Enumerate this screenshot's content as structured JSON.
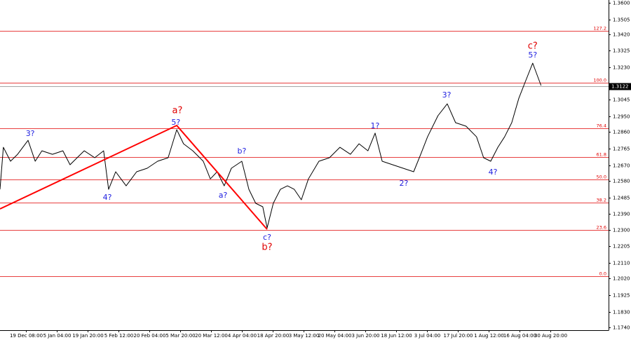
{
  "chart_data": {
    "type": "line",
    "xlim": [
      1.6,
      198.9
    ],
    "ylim": [
      1.1724,
      1.3616
    ],
    "xticks": [
      {
        "value": 10,
        "label": "19 Dec 08:00"
      },
      {
        "value": 20,
        "label": "5 Jan 04:00"
      },
      {
        "value": 30,
        "label": "19 Jan 20:00"
      },
      {
        "value": 40,
        "label": "5 Feb 12:00"
      },
      {
        "value": 50,
        "label": "20 Feb 04:00"
      },
      {
        "value": 60,
        "label": "5 Mar 20:00"
      },
      {
        "value": 70,
        "label": "20 Mar 12:00"
      },
      {
        "value": 80,
        "label": "4 Apr 04:00"
      },
      {
        "value": 90,
        "label": "18 Apr 20:00"
      },
      {
        "value": 100,
        "label": "3 May 12:00"
      },
      {
        "value": 110,
        "label": "20 May 04:00"
      },
      {
        "value": 120,
        "label": "3 Jun 20:00"
      },
      {
        "value": 130,
        "label": "18 Jun 12:00"
      },
      {
        "value": 140,
        "label": "3 Jul 04:00"
      },
      {
        "value": 150,
        "label": "17 Jul 20:00"
      },
      {
        "value": 160,
        "label": "1 Aug 12:00"
      },
      {
        "value": 170,
        "label": "16 Aug 04:00"
      },
      {
        "value": 180,
        "label": "30 Aug 20:00"
      }
    ],
    "yticks": [
      {
        "value": 1.36,
        "label": "1.3600"
      },
      {
        "value": 1.3505,
        "label": "1.3505"
      },
      {
        "value": 1.342,
        "label": "1.3420"
      },
      {
        "value": 1.3325,
        "label": "1.3325"
      },
      {
        "value": 1.323,
        "label": "1.3230"
      },
      {
        "value": 1.3045,
        "label": "1.3045"
      },
      {
        "value": 1.295,
        "label": "1.2950"
      },
      {
        "value": 1.286,
        "label": "1.2860"
      },
      {
        "value": 1.2765,
        "label": "1.2765"
      },
      {
        "value": 1.267,
        "label": "1.2670"
      },
      {
        "value": 1.258,
        "label": "1.2580"
      },
      {
        "value": 1.2485,
        "label": "1.2485"
      },
      {
        "value": 1.239,
        "label": "1.2390"
      },
      {
        "value": 1.23,
        "label": "1.2300"
      },
      {
        "value": 1.2205,
        "label": "1.2205"
      },
      {
        "value": 1.211,
        "label": "1.2110"
      },
      {
        "value": 1.202,
        "label": "1.2020"
      },
      {
        "value": 1.1925,
        "label": "1.1925"
      },
      {
        "value": 1.183,
        "label": "1.1830"
      },
      {
        "value": 1.174,
        "label": "1.1740"
      }
    ],
    "series": [
      {
        "color": "#000000",
        "x": [
          1.6,
          2.7,
          5.0,
          7.3,
          10.7,
          13.0,
          15.2,
          18.6,
          22.0,
          24.3,
          26.6,
          28.9,
          32.3,
          35.2,
          36.8,
          39.1,
          42.5,
          45.9,
          49.3,
          52.7,
          56.1,
          58.9,
          61.1,
          64.1,
          67.5,
          69.8,
          72.0,
          74.3,
          76.6,
          80.0,
          82.3,
          84.5,
          86.8,
          88.2,
          90.2,
          92.5,
          94.8,
          97.0,
          99.3,
          101.6,
          105.0,
          108.4,
          111.8,
          115.2,
          118.0,
          120.9,
          123.2,
          125.5,
          128.9,
          132.3,
          135.7,
          138.0,
          140.2,
          143.6,
          146.6,
          149.3,
          152.7,
          156.1,
          158.4,
          160.7,
          163.0,
          165.2,
          167.5,
          169.8,
          171.6,
          174.3,
          177.0
        ],
        "values": [
          1.2531,
          1.2772,
          1.2692,
          1.2732,
          1.2812,
          1.2692,
          1.2752,
          1.2732,
          1.2752,
          1.2672,
          1.2712,
          1.2752,
          1.2712,
          1.2752,
          1.2531,
          1.2632,
          1.2551,
          1.2632,
          1.2652,
          1.2692,
          1.2712,
          1.2873,
          1.2792,
          1.2752,
          1.2692,
          1.2591,
          1.2632,
          1.2551,
          1.2652,
          1.2692,
          1.2531,
          1.2451,
          1.2431,
          1.231,
          1.2451,
          1.2531,
          1.2551,
          1.2531,
          1.2471,
          1.2591,
          1.2692,
          1.2712,
          1.2772,
          1.2732,
          1.2792,
          1.2752,
          1.2853,
          1.2692,
          1.2672,
          1.2652,
          1.2632,
          1.2732,
          1.2832,
          1.2953,
          1.3021,
          1.2913,
          1.2893,
          1.2832,
          1.2712,
          1.2692,
          1.2772,
          1.2832,
          1.2913,
          1.3053,
          1.3134,
          1.3254,
          1.3126
        ]
      },
      {
        "color": "#ff0000",
        "x": [
          1.6,
          58.9,
          88.2
        ],
        "values": [
          1.2419,
          1.2897,
          1.2302
        ]
      }
    ],
    "fib_levels": [
      {
        "value": 1.3439,
        "label": "127.2"
      },
      {
        "value": 1.3142,
        "label": "100.0"
      },
      {
        "value": 1.2881,
        "label": "76.4"
      },
      {
        "value": 1.2716,
        "label": "61.8"
      },
      {
        "value": 1.2588,
        "label": "50.0"
      },
      {
        "value": 1.2455,
        "label": "38.2"
      },
      {
        "value": 1.2298,
        "label": "23.6"
      },
      {
        "value": 1.2033,
        "label": "0.0"
      }
    ],
    "fib_color": "#e00000",
    "last_price": {
      "value": 1.3122,
      "label": "1.3122"
    },
    "annotations": [
      {
        "text": "3?",
        "x": 11.4,
        "y": 1.2849,
        "color": "#2020e0"
      },
      {
        "text": "4?",
        "x": 36.4,
        "y": 1.2483,
        "color": "#2020e0"
      },
      {
        "text": "a?",
        "x": 59.1,
        "y": 1.2981,
        "color": "#e00000"
      },
      {
        "text": "5?",
        "x": 58.6,
        "y": 1.2913,
        "color": "#2020e0"
      },
      {
        "text": "b?",
        "x": 80.0,
        "y": 1.2748,
        "color": "#2020e0"
      },
      {
        "text": "a?",
        "x": 73.9,
        "y": 1.2495,
        "color": "#2020e0"
      },
      {
        "text": "c?",
        "x": 88.2,
        "y": 1.2254,
        "color": "#2020e0"
      },
      {
        "text": "b?",
        "x": 88.2,
        "y": 1.2198,
        "color": "#e00000"
      },
      {
        "text": "1?",
        "x": 123.2,
        "y": 1.2893,
        "color": "#2020e0"
      },
      {
        "text": "2?",
        "x": 132.5,
        "y": 1.2563,
        "color": "#2020e0"
      },
      {
        "text": "3?",
        "x": 146.4,
        "y": 1.307,
        "color": "#2020e0"
      },
      {
        "text": "4?",
        "x": 161.4,
        "y": 1.2628,
        "color": "#2020e0"
      },
      {
        "text": "c?",
        "x": 174.3,
        "y": 1.3351,
        "color": "#e00000"
      },
      {
        "text": "5?",
        "x": 174.3,
        "y": 1.3299,
        "color": "#2020e0"
      }
    ]
  }
}
